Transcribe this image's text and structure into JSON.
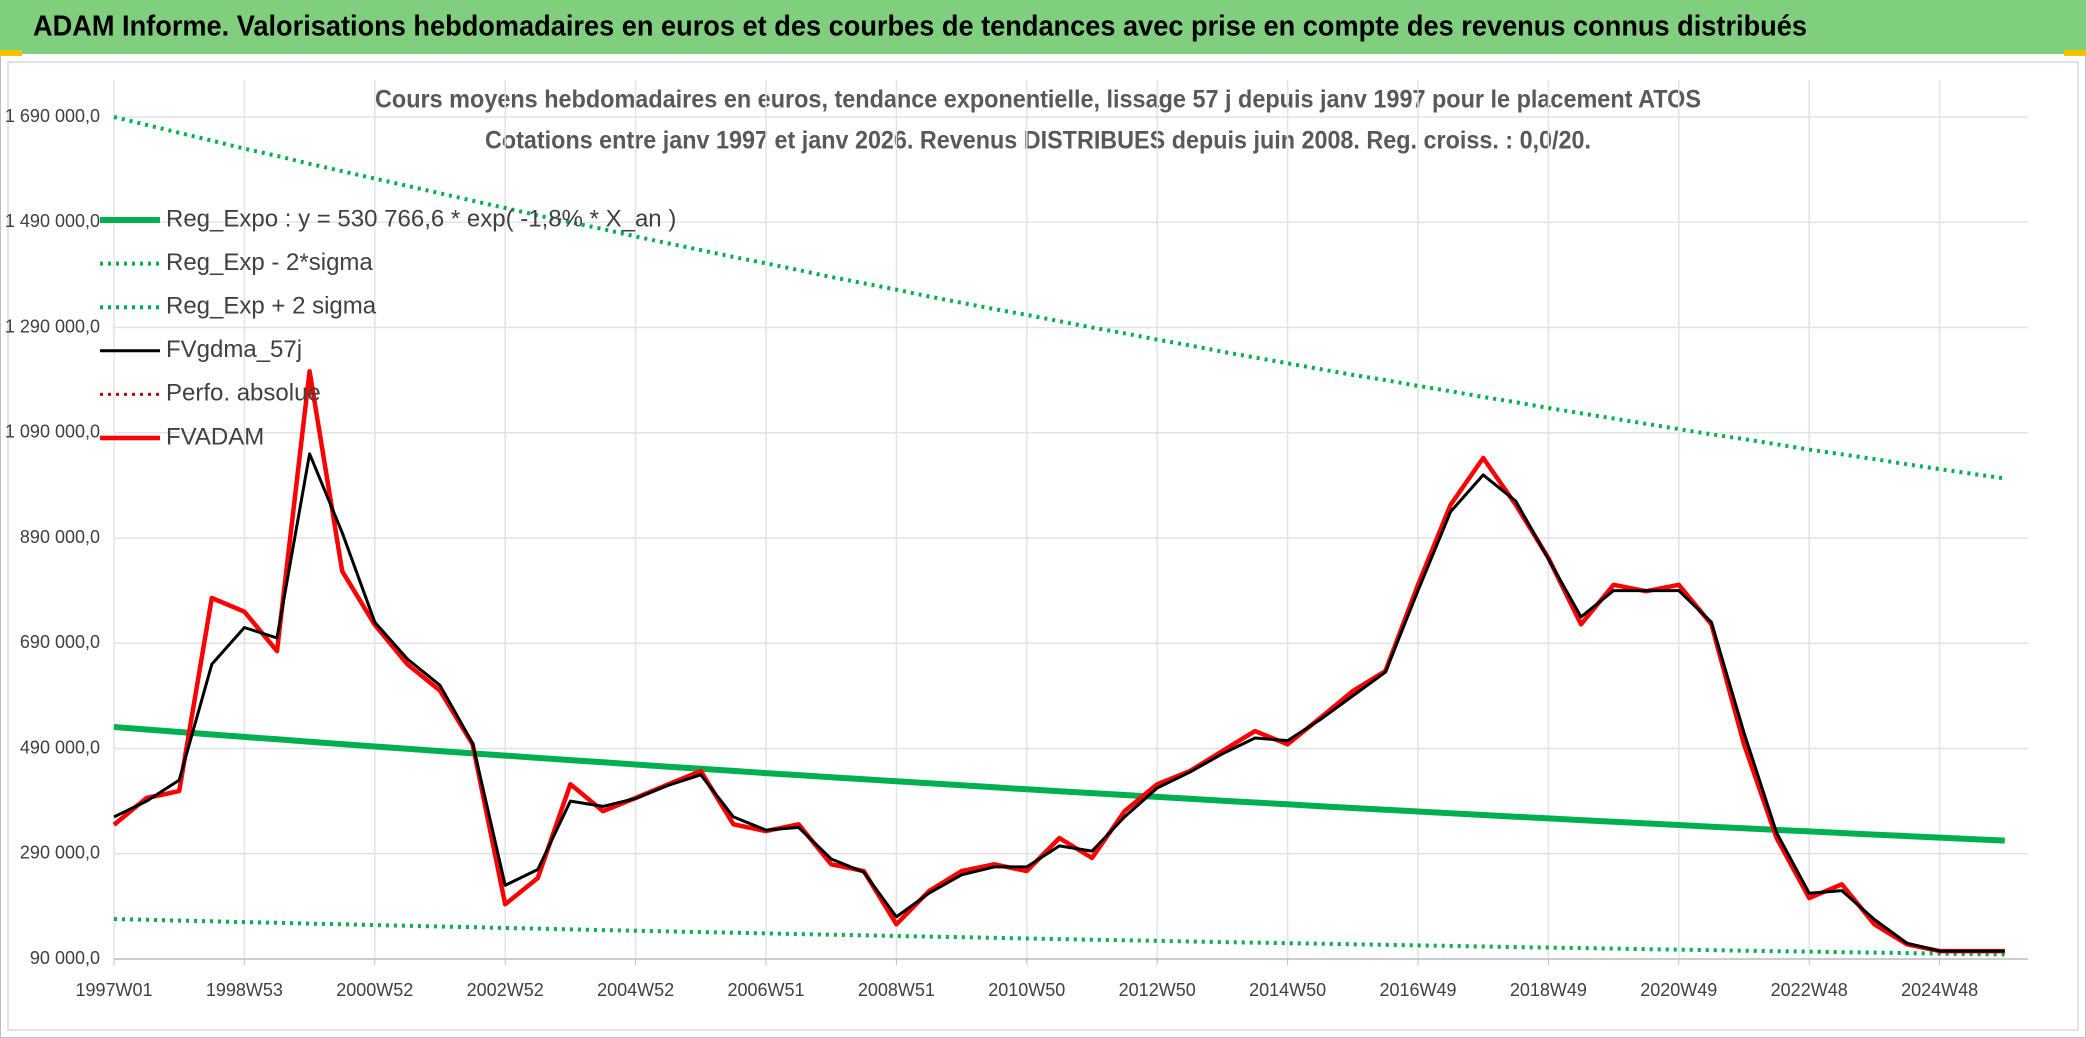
{
  "header": {
    "title": "ADAM Informe. Valorisations hebdomadaires en euros et des courbes de tendances avec prise en compte des revenus connus distribués"
  },
  "chart_data": {
    "type": "line",
    "title": "Cours moyens hebdomadaires en euros, tendance exponentielle, lissage 57 j depuis janv 1997 pour le placement ATOS",
    "subtitle": "Cotations entre janv 1997 et janv 2026. Revenus DISTRIBUES depuis juin 2008. Reg. croiss. : 0,0/20.",
    "categories": [
      "1997W01",
      null,
      null,
      null,
      "1998W53",
      null,
      null,
      null,
      "2000W52",
      null,
      null,
      null,
      "2002W52",
      null,
      null,
      null,
      "2004W52",
      null,
      null,
      null,
      "2006W51",
      null,
      null,
      null,
      "2008W51",
      null,
      null,
      null,
      "2010W50",
      null,
      null,
      null,
      "2012W50",
      null,
      null,
      null,
      "2014W50",
      null,
      null,
      null,
      "2016W49",
      null,
      null,
      null,
      "2018W49",
      null,
      null,
      null,
      "2020W49",
      null,
      null,
      null,
      "2022W48",
      null,
      null,
      null,
      "2024W48",
      null,
      null
    ],
    "ylim": [
      90000,
      1690000
    ],
    "yticks": [
      {
        "value": 90000,
        "label": "90 000,0"
      },
      {
        "value": 290000,
        "label": "290 000,0"
      },
      {
        "value": 490000,
        "label": "490 000,0"
      },
      {
        "value": 690000,
        "label": "690 000,0"
      },
      {
        "value": 890000,
        "label": "890 000,0"
      },
      {
        "value": 1090000,
        "label": "1 090 000,0"
      },
      {
        "value": 1290000,
        "label": "1 290 000,0"
      },
      {
        "value": 1490000,
        "label": "1 490 000,0"
      },
      {
        "value": 1690000,
        "label": "1 690 000,0"
      }
    ],
    "grid": true,
    "legend_position": "upper left",
    "series": [
      {
        "name": "Reg_Expo : y = 530 766,6 * exp( -1,8% * X_an )",
        "color": "#00b050",
        "style": "solid",
        "width": 6,
        "values": [
          530767,
          526011,
          521298,
          516628,
          511999,
          507413,
          502864,
          498358,
          493895,
          489468,
          485084,
          480737,
          476433,
          472160,
          467930,
          463742,
          459586,
          455467,
          451386,
          447341,
          443334,
          439364,
          435425,
          431524,
          427660,
          423828,
          420028,
          416265,
          412534,
          408839,
          405177,
          401546,
          397948,
          394381,
          390851,
          387348,
          383877,
          380438,
          377030,
          373649,
          370305,
          366988,
          363697,
          360438,
          357211,
          354010,
          350836,
          347694,
          344578,
          341489,
          338432,
          335401,
          332397,
          329414,
          326463,
          323539,
          320641,
          317770,
          314925
        ]
      },
      {
        "name": "Reg_Exp - 2*sigma",
        "color": "#00b050",
        "style": "dotted",
        "width": 4,
        "values": [
          166000,
          164500,
          163000,
          161600,
          160100,
          158700,
          157300,
          155900,
          154500,
          153100,
          151700,
          150400,
          149000,
          147700,
          146300,
          145000,
          143700,
          142400,
          141200,
          139900,
          138700,
          137400,
          136200,
          135000,
          133800,
          132600,
          131400,
          130200,
          129000,
          127900,
          126700,
          125600,
          124500,
          123300,
          122200,
          121100,
          120100,
          119000,
          117900,
          116900,
          115800,
          114800,
          113700,
          112700,
          111700,
          110700,
          109700,
          108700,
          107800,
          106800,
          105800,
          104900,
          104000,
          103000,
          102100,
          101200,
          100300,
          99400,
          98500
        ]
      },
      {
        "name": "Reg_Exp + 2 sigma",
        "color": "#00b050",
        "style": "dotted",
        "width": 4,
        "values": [
          1690000,
          1675000,
          1660000,
          1645000,
          1630000,
          1616000,
          1601000,
          1587000,
          1573000,
          1559000,
          1545000,
          1531000,
          1517000,
          1503000,
          1490000,
          1477000,
          1463000,
          1450000,
          1437000,
          1424000,
          1412000,
          1399000,
          1386000,
          1374000,
          1362000,
          1349000,
          1337000,
          1325000,
          1314000,
          1302000,
          1290000,
          1279000,
          1267000,
          1256000,
          1244000,
          1233000,
          1222000,
          1211000,
          1200000,
          1190000,
          1179000,
          1169000,
          1158000,
          1148000,
          1137000,
          1127000,
          1117000,
          1107000,
          1097000,
          1087000,
          1078000,
          1068000,
          1058000,
          1049000,
          1040000,
          1030000,
          1021000,
          1012000,
          1003000
        ]
      },
      {
        "name": "FVgdma_57j",
        "color": "#000000",
        "style": "solid",
        "width": 3,
        "values": [
          360000,
          390000,
          430000,
          650000,
          720000,
          700000,
          1050000,
          900000,
          730000,
          660000,
          610000,
          500000,
          230000,
          260000,
          390000,
          380000,
          395000,
          420000,
          440000,
          360000,
          335000,
          340000,
          280000,
          255000,
          170000,
          215000,
          250000,
          265000,
          265000,
          305000,
          295000,
          360000,
          415000,
          445000,
          480000,
          510000,
          505000,
          545000,
          590000,
          635000,
          790000,
          940000,
          1010000,
          960000,
          850000,
          740000,
          790000,
          790000,
          790000,
          730000,
          520000,
          330000,
          215000,
          220000,
          165000,
          120000,
          105000,
          105000,
          105000
        ]
      },
      {
        "name": "Perfo. absolue",
        "color": "#c00000",
        "style": "dotted",
        "width": 3,
        "values": [
          345000,
          396000,
          409000,
          776000,
          750000,
          675000,
          1207000,
          827000,
          725000,
          650000,
          600000,
          498000,
          194000,
          244000,
          422000,
          371000,
          396000,
          422000,
          447000,
          346000,
          333000,
          346000,
          270000,
          257000,
          156000,
          219000,
          257000,
          270000,
          257000,
          320000,
          282000,
          371000,
          422000,
          447000,
          485000,
          523000,
          498000,
          548000,
          599000,
          637000,
          801000,
          953000,
          1042000,
          953000,
          852000,
          726000,
          801000,
          789000,
          801000,
          726000,
          498000,
          320000,
          206000,
          232000,
          156000,
          118000,
          105000,
          105000,
          105000
        ]
      },
      {
        "name": "FVADAM",
        "color": "#ff0000",
        "style": "solid",
        "width": 4.5,
        "values": [
          345000,
          396000,
          409000,
          776000,
          750000,
          675000,
          1207000,
          827000,
          725000,
          650000,
          600000,
          498000,
          194000,
          244000,
          422000,
          371000,
          396000,
          422000,
          447000,
          346000,
          333000,
          346000,
          270000,
          257000,
          156000,
          219000,
          257000,
          270000,
          257000,
          320000,
          282000,
          371000,
          422000,
          447000,
          485000,
          523000,
          498000,
          548000,
          599000,
          637000,
          801000,
          953000,
          1042000,
          953000,
          852000,
          726000,
          801000,
          789000,
          801000,
          726000,
          498000,
          320000,
          206000,
          232000,
          156000,
          118000,
          105000,
          105000,
          105000
        ]
      }
    ]
  }
}
